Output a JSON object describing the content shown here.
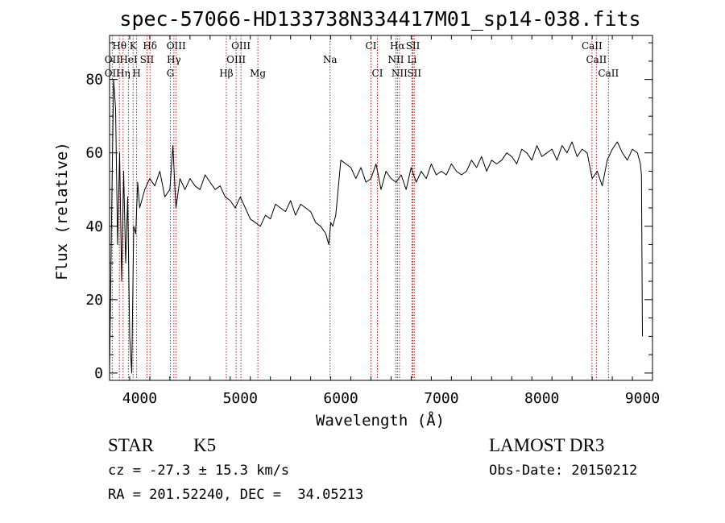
{
  "chart_data": {
    "type": "line",
    "title": "spec-57066-HD133738N334417M01_sp14-038.fits",
    "xlabel": "Wavelength (Å)",
    "ylabel": "Flux (relative)",
    "xlim": [
      3700,
      9100
    ],
    "ylim": [
      -2,
      92
    ],
    "x_ticks": [
      4000,
      5000,
      6000,
      7000,
      8000,
      9000
    ],
    "y_ticks": [
      0,
      20,
      40,
      60,
      80
    ],
    "grid": false,
    "series": [
      {
        "color": "#000000",
        "x": [
          3700,
          3720,
          3740,
          3760,
          3780,
          3800,
          3820,
          3840,
          3860,
          3880,
          3900,
          3920,
          3940,
          3960,
          3980,
          4000,
          4050,
          4100,
          4150,
          4200,
          4250,
          4300,
          4330,
          4360,
          4400,
          4450,
          4500,
          4550,
          4600,
          4650,
          4700,
          4750,
          4800,
          4850,
          4900,
          4950,
          5000,
          5050,
          5100,
          5150,
          5200,
          5250,
          5300,
          5350,
          5400,
          5450,
          5500,
          5550,
          5600,
          5650,
          5700,
          5750,
          5800,
          5850,
          5880,
          5900,
          5920,
          5950,
          6000,
          6050,
          6100,
          6150,
          6200,
          6250,
          6300,
          6350,
          6400,
          6450,
          6500,
          6550,
          6600,
          6650,
          6700,
          6750,
          6800,
          6850,
          6900,
          6950,
          7000,
          7050,
          7100,
          7150,
          7200,
          7250,
          7300,
          7350,
          7400,
          7450,
          7500,
          7550,
          7600,
          7650,
          7700,
          7750,
          7800,
          7850,
          7900,
          7950,
          8000,
          8050,
          8100,
          8150,
          8200,
          8250,
          8300,
          8350,
          8400,
          8450,
          8500,
          8550,
          8600,
          8650,
          8700,
          8750,
          8800,
          8850,
          8900,
          8950,
          8980,
          8990,
          9000
        ],
        "y": [
          0,
          42,
          80,
          72,
          35,
          60,
          25,
          55,
          30,
          48,
          10,
          0,
          40,
          38,
          52,
          45,
          50,
          53,
          51,
          55,
          48,
          50,
          62,
          45,
          53,
          50,
          53,
          51,
          50,
          54,
          52,
          50,
          51,
          48,
          47,
          45,
          48,
          45,
          42,
          41,
          40,
          43,
          42,
          46,
          45,
          44,
          47,
          43,
          46,
          45,
          44,
          41,
          40,
          38,
          35,
          41,
          40,
          43,
          58,
          57,
          56,
          53,
          56,
          52,
          53,
          57,
          50,
          55,
          53,
          52,
          54,
          50,
          56,
          52,
          55,
          53,
          57,
          54,
          55,
          54,
          57,
          55,
          54,
          55,
          58,
          56,
          59,
          55,
          58,
          57,
          58,
          60,
          59,
          57,
          61,
          60,
          58,
          62,
          59,
          60,
          61,
          58,
          62,
          60,
          63,
          59,
          61,
          60,
          53,
          55,
          51,
          58,
          61,
          63,
          60,
          58,
          61,
          60,
          57,
          54,
          10
        ]
      }
    ],
    "line_annotations": [
      {
        "label": "Hθ",
        "x": 3798,
        "row": 1
      },
      {
        "label": "K",
        "x": 3934,
        "row": 1
      },
      {
        "label": "Hδ",
        "x": 4102,
        "row": 1
      },
      {
        "label": "OIII",
        "x": 4363,
        "row": 1
      },
      {
        "label": "OIII",
        "x": 5007,
        "row": 1
      },
      {
        "label": "CI",
        "x": 6300,
        "row": 1
      },
      {
        "label": "Hα",
        "x": 6563,
        "row": 1
      },
      {
        "label": "SII",
        "x": 6717,
        "row": 1
      },
      {
        "label": "CaII",
        "x": 8498,
        "row": 1
      },
      {
        "label": "OII",
        "x": 3727,
        "row": 2
      },
      {
        "label": "HeI",
        "x": 3889,
        "row": 2
      },
      {
        "label": "SII",
        "x": 4072,
        "row": 2
      },
      {
        "label": "Hγ",
        "x": 4340,
        "row": 2
      },
      {
        "label": "OIII",
        "x": 4959,
        "row": 2
      },
      {
        "label": "Na",
        "x": 5893,
        "row": 2
      },
      {
        "label": "NII",
        "x": 6548,
        "row": 2
      },
      {
        "label": "Li",
        "x": 6708,
        "row": 2
      },
      {
        "label": "CaII",
        "x": 8542,
        "row": 2
      },
      {
        "label": "OII",
        "x": 3727,
        "row": 3
      },
      {
        "label": "Hη",
        "x": 3835,
        "row": 3
      },
      {
        "label": "H",
        "x": 3969,
        "row": 3
      },
      {
        "label": "G",
        "x": 4305,
        "row": 3
      },
      {
        "label": "Hβ",
        "x": 4861,
        "row": 3
      },
      {
        "label": "Mg",
        "x": 5175,
        "row": 3
      },
      {
        "label": "CI",
        "x": 6364,
        "row": 3
      },
      {
        "label": "NII",
        "x": 6583,
        "row": 3
      },
      {
        "label": "SII",
        "x": 6731,
        "row": 3
      },
      {
        "label": "CaII",
        "x": 8662,
        "row": 3
      }
    ],
    "reference_lines_x": [
      3727,
      3798,
      3835,
      3889,
      3934,
      3969,
      4072,
      4102,
      4305,
      4340,
      4363,
      4861,
      4959,
      5007,
      5175,
      5893,
      6300,
      6364,
      6548,
      6563,
      6583,
      6708,
      6717,
      6731,
      8498,
      8542,
      8662
    ],
    "line_color": "#b22222"
  },
  "info": {
    "class_label": "STAR",
    "subclass": "K5",
    "survey": "LAMOST DR3",
    "cz_text": "cz = -27.3 ± 15.3 km/s",
    "obs_date_text": "Obs-Date: 20150212",
    "radec_text": "RA = 201.52240, DEC =  34.05213"
  }
}
